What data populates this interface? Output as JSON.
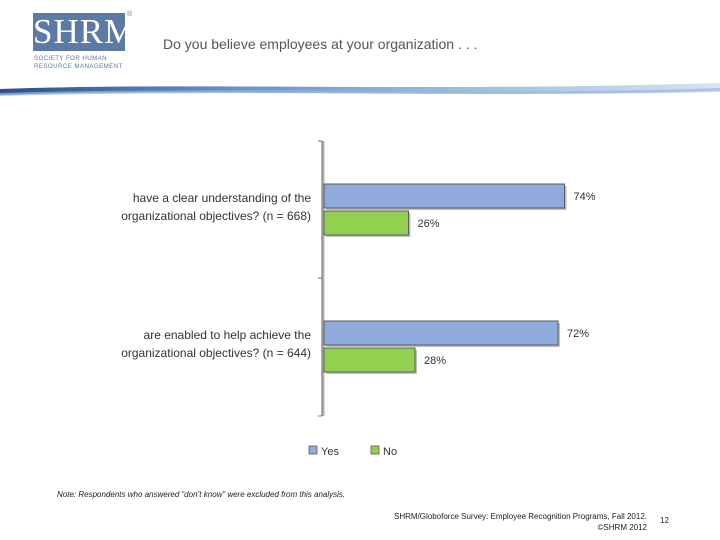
{
  "logo": {
    "text": "SHRM",
    "reg": "®",
    "sub_line1": "SOCIETY FOR HUMAN",
    "sub_line2": "RESOURCE MANAGEMENT"
  },
  "header": {
    "title": "Do you believe employees at your organization . . ."
  },
  "chart_data": {
    "type": "bar",
    "orientation": "horizontal",
    "categories": [
      [
        "have a clear understanding of the",
        "organizational objectives? (n = 668)"
      ],
      [
        "are enabled to help achieve the",
        "organizational objectives? (n = 644)"
      ]
    ],
    "series": [
      {
        "name": "Yes",
        "values": [
          74,
          72
        ],
        "labels": [
          "74%",
          "72%"
        ],
        "color": "#8fabdb"
      },
      {
        "name": "No",
        "values": [
          26,
          28
        ],
        "labels": [
          "26%",
          "28%"
        ],
        "color": "#92d050"
      }
    ],
    "xlim": [
      0,
      100
    ],
    "grid": false,
    "legend": "bottom"
  },
  "footer": {
    "note": "Note: Respondents who answered “don’t know” were excluded from this analysis.",
    "source_line1": "SHRM/Globoforce Survey: Employee Recognition Programs, Fall 2012.",
    "source_line2": "©SHRM 2012",
    "page_number": "12"
  }
}
